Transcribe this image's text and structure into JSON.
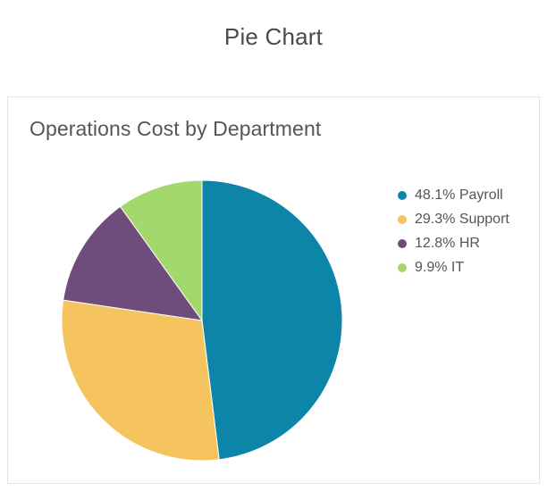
{
  "page": {
    "title": "Pie Chart"
  },
  "chart_data": {
    "type": "pie",
    "title": "Operations Cost by Department",
    "unit": "%",
    "legend_position": "right",
    "slices": [
      {
        "label": "Payroll",
        "value": 48.1,
        "legend_text": "48.1% Payroll",
        "color": "#0d85a8"
      },
      {
        "label": "Support",
        "value": 29.3,
        "legend_text": "29.3% Support",
        "color": "#f5c45e"
      },
      {
        "label": "HR",
        "value": 12.8,
        "legend_text": "12.8% HR",
        "color": "#704c7c"
      },
      {
        "label": "IT",
        "value": 9.9,
        "legend_text": "9.9% IT",
        "color": "#a2d86c"
      }
    ]
  }
}
